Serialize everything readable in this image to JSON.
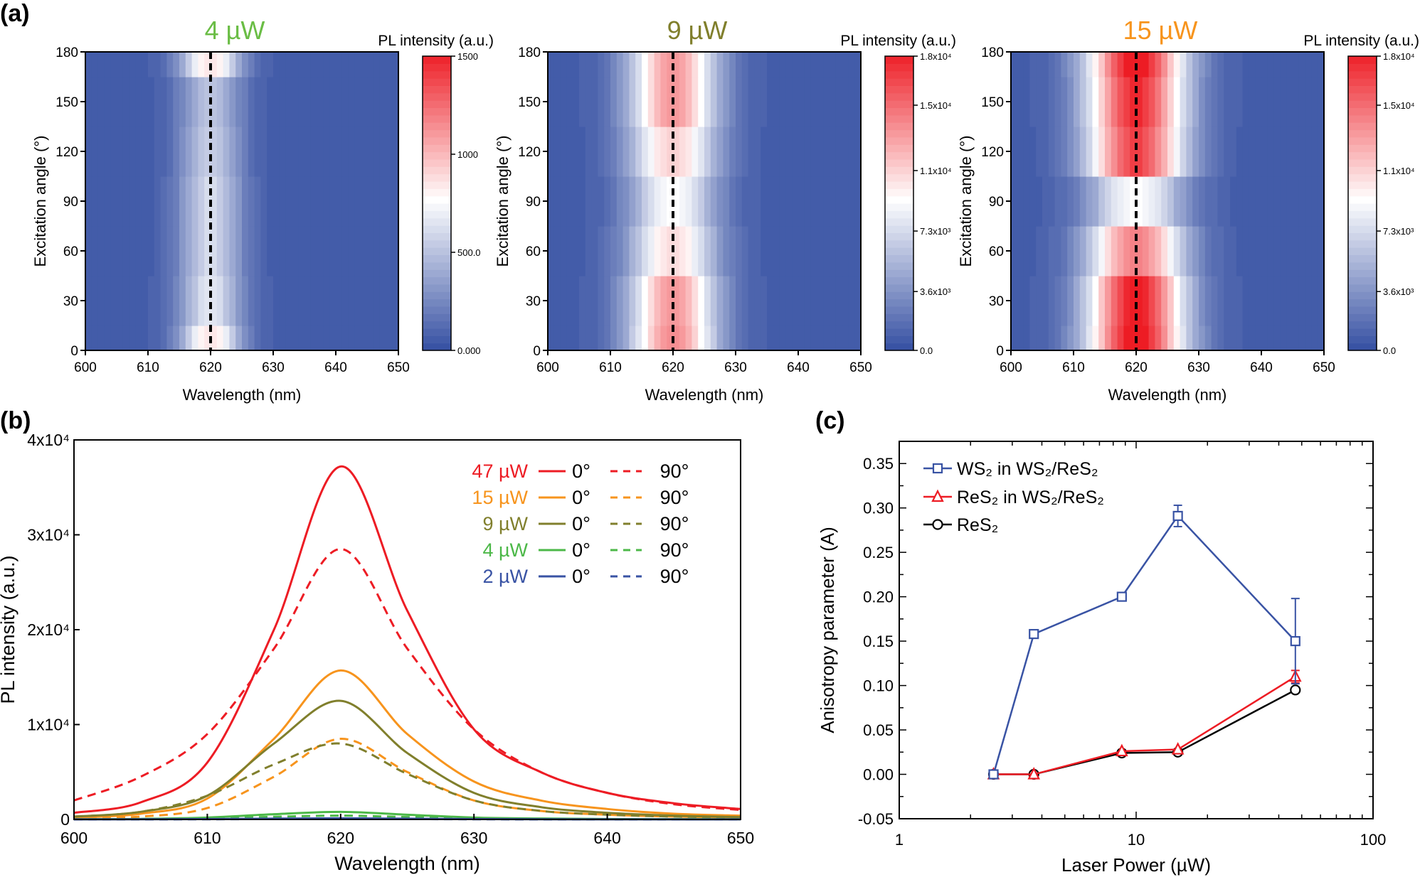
{
  "panel_labels": {
    "a": "(a)",
    "b": "(b)",
    "c": "(c)"
  },
  "chart_data": [
    {
      "type": "heatmap",
      "panel": "a",
      "title": "4 µW",
      "title_color": "#6abd45",
      "xlabel": "Wavelength (nm)",
      "ylabel": "Excitation angle (°)",
      "xlim": [
        600,
        650
      ],
      "ylim": [
        0,
        180
      ],
      "xticks": [
        600,
        610,
        620,
        630,
        640,
        650
      ],
      "yticks": [
        0,
        30,
        60,
        90,
        120,
        150,
        180
      ],
      "colorbar": {
        "title": "PL intensity (a.u.)",
        "range": [
          0,
          1500
        ],
        "ticks": [
          0,
          500,
          1000,
          1500
        ],
        "tick_labels": [
          "0.000",
          "500.0",
          "1000",
          "1500"
        ],
        "colors": [
          "#3953a4",
          "#ffffff",
          "#ed1c24"
        ]
      },
      "marker_line_wavelength": 620,
      "angles": [
        0,
        30,
        60,
        90,
        120,
        150,
        180
      ],
      "peak_wavelength": 620,
      "peak_width_nm": 3.5,
      "peak_intensity": [
        800,
        600,
        550,
        550,
        500,
        450,
        800
      ]
    },
    {
      "type": "heatmap",
      "panel": "a",
      "title": "9 µW",
      "title_color": "#807f2c",
      "xlabel": "Wavelength (nm)",
      "ylabel": "Excitation angle (°)",
      "xlim": [
        600,
        650
      ],
      "ylim": [
        0,
        180
      ],
      "xticks": [
        600,
        610,
        620,
        630,
        640,
        650
      ],
      "yticks": [
        0,
        30,
        60,
        90,
        120,
        150,
        180
      ],
      "colorbar": {
        "title": "PL intensity (a.u.)",
        "range": [
          0,
          18000
        ],
        "ticks": [
          0,
          3600,
          7300,
          11000,
          15000,
          18000
        ],
        "tick_labels": [
          "0.0",
          "3.6x10³",
          "7.3x10³",
          "1.1x10⁴",
          "1.5x10⁴",
          "1.8x10⁴"
        ],
        "colors": [
          "#3953a4",
          "#ffffff",
          "#ed1c24"
        ]
      },
      "marker_line_wavelength": 620,
      "angles": [
        0,
        30,
        60,
        90,
        120,
        150,
        180
      ],
      "peak_wavelength": 620,
      "peak_width_nm": 5,
      "peak_intensity": [
        13000,
        12500,
        10000,
        8500,
        10500,
        12500,
        12500
      ]
    },
    {
      "type": "heatmap",
      "panel": "a",
      "title": "15 µW",
      "title_color": "#f7941d",
      "xlabel": "Wavelength (nm)",
      "ylabel": "Excitation angle (°)",
      "xlim": [
        600,
        650
      ],
      "ylim": [
        0,
        180
      ],
      "xticks": [
        600,
        610,
        620,
        630,
        640,
        650
      ],
      "yticks": [
        0,
        30,
        60,
        90,
        120,
        150,
        180
      ],
      "colorbar": {
        "title": "PL intensity (a.u.)",
        "range": [
          0,
          18000
        ],
        "ticks": [
          0,
          3600,
          7300,
          11000,
          15000,
          18000
        ],
        "tick_labels": [
          "0.0",
          "3.6x10³",
          "7.3x10³",
          "1.1x10⁴",
          "1.5x10⁴",
          "1.8x10⁴"
        ],
        "colors": [
          "#3953a4",
          "#ffffff",
          "#ed1c24"
        ]
      },
      "marker_line_wavelength": 620,
      "angles": [
        0,
        30,
        60,
        90,
        120,
        150,
        180
      ],
      "peak_wavelength": 620,
      "peak_width_nm": 5.5,
      "peak_intensity": [
        18000,
        17500,
        13500,
        8500,
        16000,
        17000,
        18000
      ]
    },
    {
      "type": "line",
      "panel": "b",
      "xlabel": "Wavelength (nm)",
      "ylabel": "PL intensity (a.u.)",
      "xlim": [
        600,
        650
      ],
      "ylim": [
        0,
        40000
      ],
      "xticks": [
        600,
        610,
        620,
        630,
        640,
        650
      ],
      "yticks": [
        0,
        10000,
        20000,
        30000,
        40000
      ],
      "ytick_labels": [
        "0",
        "1x10⁴",
        "2x10⁴",
        "3x10⁴",
        "4x10⁴"
      ],
      "legend_position": "top-right",
      "x": [
        600,
        605,
        610,
        615,
        620,
        625,
        630,
        635,
        640,
        645,
        650
      ],
      "series": [
        {
          "power": "47 µW",
          "angle": "0°",
          "color": "#ed1c24",
          "dashed": false,
          "values": [
            700,
            1800,
            6000,
            20000,
            37200,
            22000,
            9500,
            5000,
            2800,
            1700,
            1100
          ]
        },
        {
          "power": "47 µW",
          "angle": "90°",
          "color": "#ed1c24",
          "dashed": true,
          "values": [
            2000,
            4500,
            9000,
            18000,
            28500,
            18000,
            9500,
            5000,
            2800,
            1600,
            1000
          ]
        },
        {
          "power": "15 µW",
          "angle": "0°",
          "color": "#f7941d",
          "dashed": false,
          "values": [
            200,
            600,
            2200,
            8500,
            15700,
            9000,
            4000,
            2000,
            1100,
            600,
            400
          ]
        },
        {
          "power": "15 µW",
          "angle": "90°",
          "color": "#f7941d",
          "dashed": true,
          "values": [
            100,
            300,
            1200,
            4500,
            8500,
            5000,
            2000,
            900,
            500,
            300,
            200
          ]
        },
        {
          "power": "9 µW",
          "angle": "0°",
          "color": "#807f2c",
          "dashed": false,
          "values": [
            300,
            800,
            2500,
            8000,
            12500,
            7000,
            2800,
            1300,
            700,
            400,
            250
          ]
        },
        {
          "power": "9 µW",
          "angle": "90°",
          "color": "#807f2c",
          "dashed": true,
          "values": [
            300,
            800,
            2500,
            5800,
            8000,
            4800,
            2000,
            900,
            500,
            300,
            200
          ]
        },
        {
          "power": "4 µW",
          "angle": "0°",
          "color": "#4cb848",
          "dashed": false,
          "values": [
            20,
            60,
            200,
            550,
            800,
            500,
            200,
            100,
            50,
            30,
            20
          ]
        },
        {
          "power": "4 µW",
          "angle": "90°",
          "color": "#4cb848",
          "dashed": true,
          "values": [
            10,
            30,
            100,
            280,
            400,
            250,
            100,
            50,
            25,
            15,
            10
          ]
        },
        {
          "power": "2 µW",
          "angle": "0°",
          "color": "#3953a4",
          "dashed": false,
          "values": [
            5,
            15,
            40,
            90,
            120,
            80,
            40,
            20,
            10,
            5,
            5
          ]
        },
        {
          "power": "2 µW",
          "angle": "90°",
          "color": "#3953a4",
          "dashed": true,
          "values": [
            3,
            8,
            20,
            45,
            60,
            40,
            20,
            10,
            5,
            3,
            3
          ]
        }
      ]
    },
    {
      "type": "line",
      "panel": "c",
      "xlabel": "Laser Power (µW)",
      "ylabel": "Anisotropy parameter (A)",
      "xscale": "log",
      "xlim": [
        1,
        100
      ],
      "ylim": [
        -0.05,
        0.375
      ],
      "xticks": [
        1,
        10,
        100
      ],
      "yticks": [
        -0.05,
        0.0,
        0.05,
        0.1,
        0.15,
        0.2,
        0.25,
        0.3,
        0.35
      ],
      "ytick_labels": [
        "-0.05",
        "0.00",
        "0.05",
        "0.10",
        "0.15",
        "0.20",
        "0.25",
        "0.30",
        "0.35"
      ],
      "legend_position": "top-left",
      "x": [
        2.5,
        3.7,
        8.7,
        15,
        47
      ],
      "series": [
        {
          "name": "WS₂ in WS₂/ReS₂",
          "color": "#3953a4",
          "marker": "square",
          "values": [
            0,
            0.158,
            0.2,
            0.291,
            0.15
          ],
          "errors": [
            0,
            0.002,
            0.004,
            0.012,
            0.048
          ]
        },
        {
          "name": "ReS₂ in WS₂/ReS₂",
          "color": "#ed1c24",
          "marker": "triangle",
          "values": [
            0,
            0,
            0.026,
            0.028,
            0.11
          ],
          "errors": [
            0,
            0,
            0,
            0,
            0.007
          ]
        },
        {
          "name": "ReS₂",
          "color": "#000000",
          "marker": "circle",
          "values": [
            0,
            0,
            0.024,
            0.025,
            0.095
          ],
          "errors": [
            0,
            0,
            0,
            0,
            0
          ]
        }
      ]
    }
  ]
}
